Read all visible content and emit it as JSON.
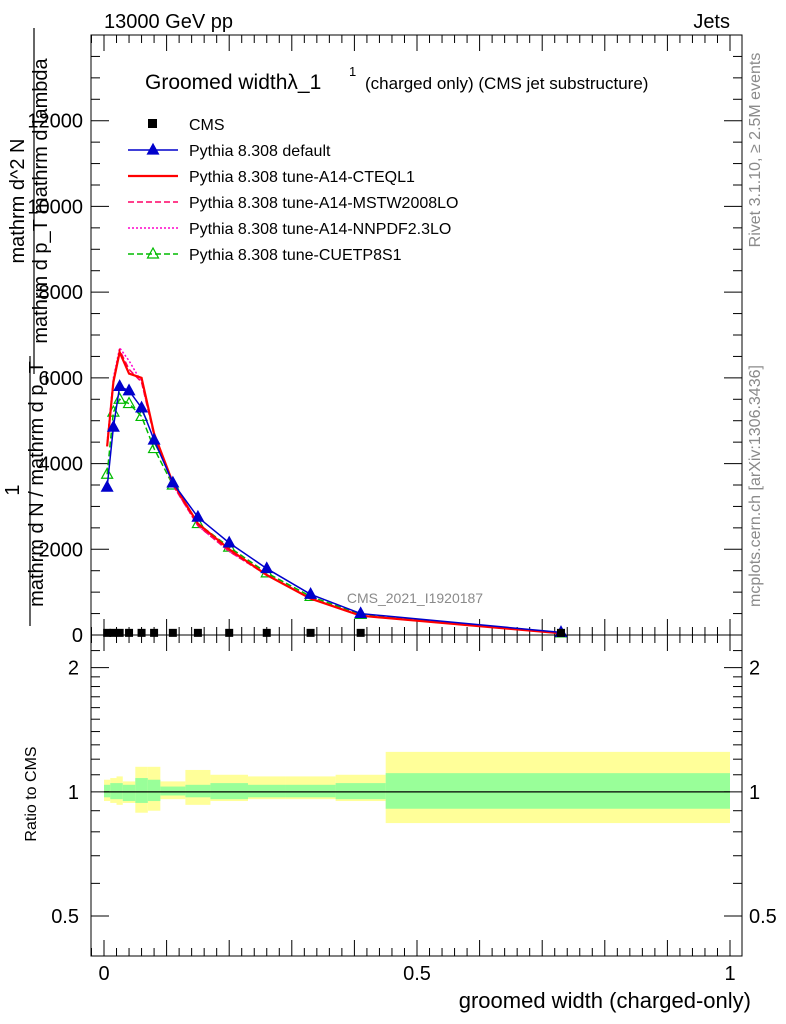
{
  "header": {
    "energy_label": "13000 GeV pp",
    "category_label": "Jets",
    "side_rivet": "Rivet 3.1.10, ≥ 2.5M events",
    "side_mcplots": "mcplots.cern.ch [arXiv:1306.3436]"
  },
  "chart_data": [
    {
      "type": "line",
      "title": "Groomed widthλ_1",
      "title_superscript": "1",
      "title_suffix": "(charged only) (CMS jet substructure)",
      "ylabel_lines": [
        "mathrm d^2 N",
        "mathrm d p_T mathrm d lambda",
        "1",
        "mathrm d N / mathrm d p_T"
      ],
      "analysis_label": "CMS_2021_I1920187",
      "xlim": [
        -0.02,
        1.0
      ],
      "ylim": [
        0,
        14000
      ],
      "yticks": [
        0,
        2000,
        4000,
        6000,
        8000,
        10000,
        12000
      ],
      "ytick_labels": [
        "0",
        "2000",
        "4000",
        "6000",
        "8000",
        "10000",
        "12000"
      ],
      "legend_position": "top-left",
      "x": [
        0.005,
        0.015,
        0.025,
        0.04,
        0.06,
        0.08,
        0.11,
        0.15,
        0.2,
        0.26,
        0.33,
        0.41,
        0.73
      ],
      "series": [
        {
          "name": "CMS",
          "color": "#000000",
          "style": "square",
          "values": [
            50,
            50,
            50,
            50,
            50,
            50,
            50,
            50,
            50,
            50,
            50,
            50,
            50
          ]
        },
        {
          "name": "Pythia 8.308 default",
          "color": "#0000cc",
          "style": "solid-triangle",
          "values": [
            3450,
            4850,
            5800,
            5700,
            5300,
            4550,
            3550,
            2750,
            2150,
            1550,
            950,
            500,
            60
          ]
        },
        {
          "name": "Pythia 8.308 tune-A14-CTEQL1",
          "color": "#ff0000",
          "style": "solid",
          "values": [
            4400,
            5900,
            6600,
            6100,
            6000,
            4700,
            3550,
            2600,
            2000,
            1400,
            850,
            450,
            40
          ]
        },
        {
          "name": "Pythia 8.308 tune-A14-MSTW2008LO",
          "color": "#ff0066",
          "style": "dashed",
          "values": [
            4450,
            5950,
            6650,
            6200,
            5900,
            4650,
            3500,
            2550,
            1950,
            1400,
            850,
            450,
            40
          ]
        },
        {
          "name": "Pythia 8.308 tune-A14-NNPDF2.3LO",
          "color": "#ff00cc",
          "style": "dotted",
          "values": [
            4500,
            6000,
            6700,
            6400,
            5900,
            4700,
            3500,
            2550,
            1950,
            1400,
            850,
            450,
            40
          ]
        },
        {
          "name": "Pythia 8.308 tune-CUETP8S1",
          "color": "#00bb00",
          "style": "dashed-open-triangle",
          "values": [
            3750,
            5200,
            5500,
            5400,
            5100,
            4350,
            3500,
            2600,
            2050,
            1450,
            900,
            480,
            50
          ]
        }
      ]
    },
    {
      "type": "area",
      "ylabel": "Ratio to CMS",
      "xlabel": "groomed width (charged-only)",
      "xlim": [
        -0.02,
        1.0
      ],
      "ylim": [
        0.4,
        2.4
      ],
      "log_scale_y": true,
      "yticks": [
        0.5,
        1,
        2
      ],
      "ytick_labels": [
        "0.5",
        "1",
        "2"
      ],
      "xticks": [
        0,
        0.5,
        1
      ],
      "xtick_labels": [
        "0",
        "0.5",
        "1"
      ],
      "bins": [
        0,
        0.01,
        0.02,
        0.03,
        0.05,
        0.07,
        0.09,
        0.13,
        0.17,
        0.23,
        0.29,
        0.37,
        0.45,
        1.0
      ],
      "stat_band_down": [
        0.97,
        0.96,
        0.96,
        0.95,
        0.94,
        0.95,
        0.98,
        0.97,
        0.96,
        0.97,
        0.97,
        0.96,
        0.91
      ],
      "stat_band_up": [
        1.04,
        1.05,
        1.05,
        1.04,
        1.08,
        1.07,
        1.03,
        1.04,
        1.05,
        1.04,
        1.04,
        1.05,
        1.11
      ],
      "total_band_down": [
        0.95,
        0.94,
        0.93,
        0.94,
        0.89,
        0.9,
        0.96,
        0.93,
        0.95,
        0.96,
        0.96,
        0.95,
        0.84
      ],
      "total_band_up": [
        1.07,
        1.08,
        1.09,
        1.06,
        1.15,
        1.15,
        1.06,
        1.13,
        1.1,
        1.09,
        1.09,
        1.1,
        1.25
      ],
      "colors": {
        "stat_band": "#99ff99",
        "total_band": "#ffff99",
        "reference_line": "#000000"
      }
    }
  ]
}
